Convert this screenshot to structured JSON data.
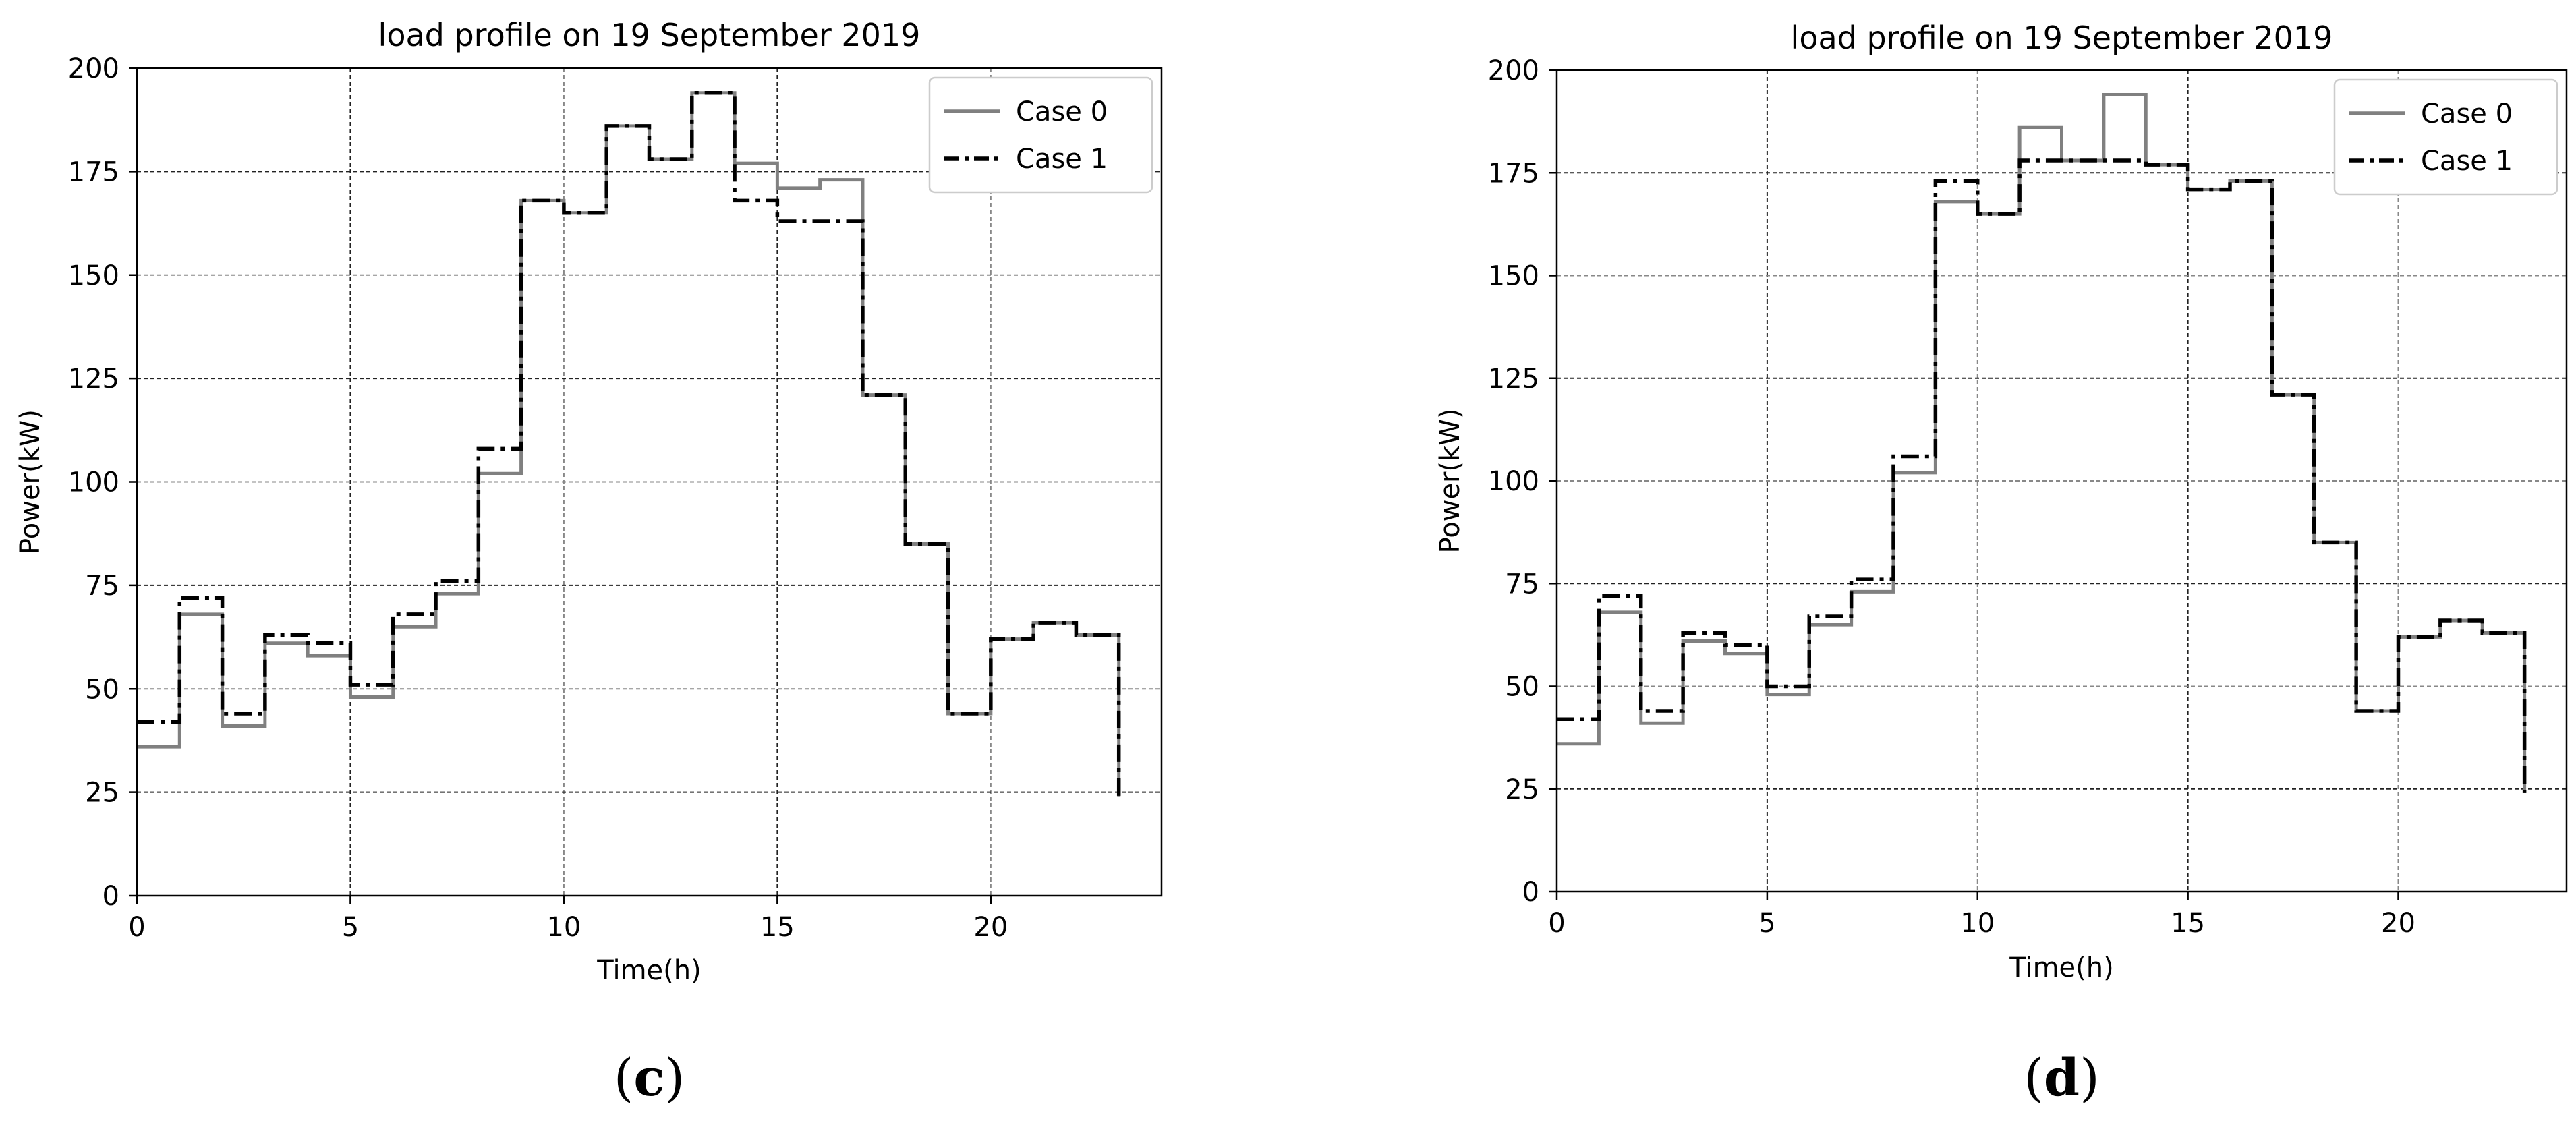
{
  "chart_data": [
    {
      "type": "line",
      "title": "load profile on 19 September 2019",
      "xlabel": "Time(h)",
      "ylabel": "Power(kW)",
      "xlim": [
        0,
        24
      ],
      "ylim": [
        0,
        200
      ],
      "xticks": [
        0,
        5,
        10,
        15,
        20
      ],
      "yticks": [
        0,
        25,
        50,
        75,
        100,
        125,
        150,
        175,
        200
      ],
      "grid": true,
      "legend_position": "top-right",
      "caption": {
        "open": "(",
        "letter": "c",
        "close": ")"
      },
      "series": [
        {
          "name": "Case 0",
          "color": "#808080",
          "style": "solid",
          "values": [
            36,
            68,
            41,
            61,
            58,
            48,
            65,
            73,
            102,
            168,
            165,
            186,
            178,
            194,
            177,
            171,
            173,
            121,
            85,
            44,
            62,
            66,
            63,
            24
          ]
        },
        {
          "name": "Case 1",
          "color": "#000000",
          "style": "dashdot",
          "values": [
            42,
            72,
            44,
            63,
            61,
            51,
            68,
            76,
            108,
            168,
            165,
            186,
            178,
            194,
            168,
            163,
            163,
            121,
            85,
            44,
            62,
            66,
            63,
            24
          ]
        }
      ]
    },
    {
      "type": "line",
      "title": "load profile on 19 September 2019",
      "xlabel": "Time(h)",
      "ylabel": "Power(kW)",
      "xlim": [
        0,
        24
      ],
      "ylim": [
        0,
        200
      ],
      "xticks": [
        0,
        5,
        10,
        15,
        20
      ],
      "yticks": [
        0,
        25,
        50,
        75,
        100,
        125,
        150,
        175,
        200
      ],
      "grid": true,
      "legend_position": "top-right",
      "caption": {
        "open": "(",
        "letter": "d",
        "close": ")"
      },
      "series": [
        {
          "name": "Case 0",
          "color": "#808080",
          "style": "solid",
          "values": [
            36,
            68,
            41,
            61,
            58,
            48,
            65,
            73,
            102,
            168,
            165,
            186,
            178,
            194,
            177,
            171,
            173,
            121,
            85,
            44,
            62,
            66,
            63,
            24
          ]
        },
        {
          "name": "Case 1",
          "color": "#000000",
          "style": "dashdot",
          "values": [
            42,
            72,
            44,
            63,
            60,
            50,
            67,
            76,
            106,
            173,
            165,
            178,
            178,
            178,
            177,
            171,
            173,
            121,
            85,
            44,
            62,
            66,
            63,
            24
          ]
        }
      ]
    }
  ]
}
